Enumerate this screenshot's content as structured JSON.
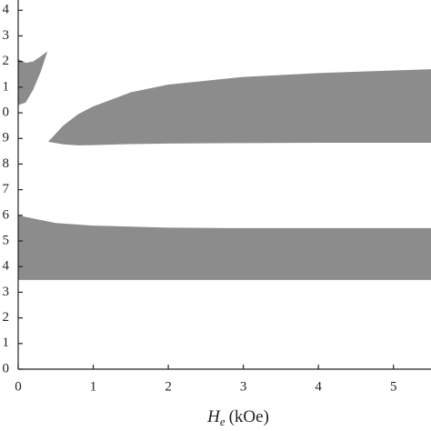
{
  "chart_data": {
    "type": "band",
    "xlabel": {
      "symbol": "H",
      "subscript": "e",
      "unit": "(kOe)"
    },
    "xlim": [
      0,
      5.5
    ],
    "xticks": [
      0,
      1,
      2,
      3,
      4,
      5
    ],
    "ylim": [
      0,
      14.4
    ],
    "yticks": [
      0,
      1,
      2,
      3,
      4,
      5,
      6,
      7,
      8,
      9,
      {
        "value": 10,
        "label": "0"
      },
      {
        "value": 11,
        "label": "1"
      },
      {
        "value": 12,
        "label": "2"
      },
      {
        "value": 13,
        "label": "3"
      },
      {
        "value": 14,
        "label": "4"
      }
    ],
    "series": [
      {
        "color": "#8c8c8c",
        "x": [
          0,
          0.1,
          0.2,
          0.3,
          0.39
        ],
        "lower": [
          10.3,
          10.4,
          10.9,
          11.6,
          12.4
        ],
        "upper": [
          12.1,
          11.95,
          12.0,
          12.2,
          12.4
        ]
      },
      {
        "color": "#8c8c8c",
        "x": [
          0.4,
          0.6,
          0.8,
          1,
          1.5,
          2,
          3,
          4,
          5.5
        ],
        "lower": [
          8.87,
          8.77,
          8.73,
          8.74,
          8.78,
          8.8,
          8.82,
          8.83,
          8.83
        ],
        "upper": [
          8.87,
          9.5,
          9.95,
          10.25,
          10.8,
          11.1,
          11.4,
          11.55,
          11.7
        ]
      },
      {
        "color": "#8c8c8c",
        "x": [
          0,
          0.25,
          0.5,
          1,
          2,
          3,
          5.5
        ],
        "lower": [
          3.48,
          3.48,
          3.48,
          3.48,
          3.48,
          3.48,
          3.48
        ],
        "upper": [
          6.0,
          5.85,
          5.7,
          5.6,
          5.52,
          5.5,
          5.5
        ]
      }
    ]
  }
}
